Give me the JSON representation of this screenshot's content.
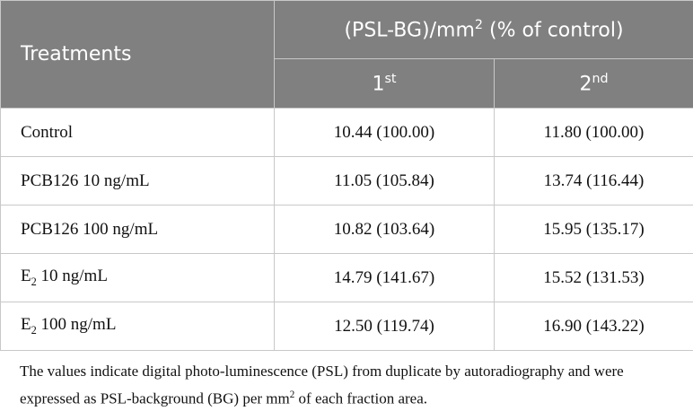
{
  "table": {
    "header": {
      "treatments": "Treatments",
      "group": {
        "text": "(PSL-BG)/mm",
        "sup": "2",
        "rest": " (% of control)"
      },
      "columns": [
        {
          "text": "1",
          "sup": "st"
        },
        {
          "text": "2",
          "sup": "nd"
        }
      ]
    },
    "rows": [
      {
        "treatment": {
          "text": "Control"
        },
        "values": [
          "10.44 (100.00)",
          "11.80 (100.00)"
        ]
      },
      {
        "treatment": {
          "text": "PCB126 10 ng/mL"
        },
        "values": [
          "11.05 (105.84)",
          "13.74 (116.44)"
        ]
      },
      {
        "treatment": {
          "text": "PCB126 100 ng/mL"
        },
        "values": [
          "10.82 (103.64)",
          "15.95 (135.17)"
        ]
      },
      {
        "treatment": {
          "text": "E",
          "sub": "2",
          "rest": " 10 ng/mL"
        },
        "values": [
          "14.79 (141.67)",
          "15.52 (131.53)"
        ]
      },
      {
        "treatment": {
          "text": "E",
          "sub": "2",
          "rest": " 100 ng/mL"
        },
        "values": [
          "12.50 (119.74)",
          "16.90 (143.22)"
        ]
      }
    ]
  },
  "footnote": {
    "text": "The values indicate digital photo-luminescence (PSL) from duplicate by autoradiography and were expressed as PSL-background (BG) per mm",
    "sup": "2",
    "rest": " of each fraction area."
  }
}
